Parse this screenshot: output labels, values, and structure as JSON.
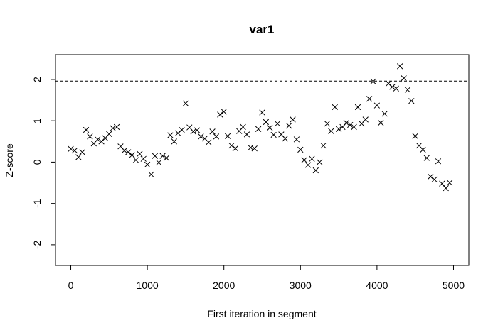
{
  "chart_data": {
    "type": "scatter",
    "title": "var1",
    "xlabel": "First iteration in segment",
    "ylabel": "Z-score",
    "xlim": [
      -200,
      5200
    ],
    "ylim": [
      -2.5,
      2.6
    ],
    "x_ticks": [
      0,
      1000,
      2000,
      3000,
      4000,
      5000
    ],
    "x_tick_labels": [
      "0",
      "1000",
      "2000",
      "3000",
      "4000",
      "5000"
    ],
    "y_ticks": [
      -2,
      -1,
      0,
      1,
      2
    ],
    "y_tick_labels": [
      "-2",
      "-1",
      "0",
      "1",
      "2"
    ],
    "reference_lines": [
      1.96,
      -1.96
    ],
    "marker": "x",
    "grid": false,
    "points": [
      [
        0,
        0.32
      ],
      [
        50,
        0.28
      ],
      [
        100,
        0.12
      ],
      [
        150,
        0.24
      ],
      [
        200,
        0.78
      ],
      [
        250,
        0.62
      ],
      [
        300,
        0.45
      ],
      [
        350,
        0.55
      ],
      [
        400,
        0.5
      ],
      [
        450,
        0.58
      ],
      [
        500,
        0.68
      ],
      [
        550,
        0.82
      ],
      [
        600,
        0.85
      ],
      [
        650,
        0.38
      ],
      [
        700,
        0.28
      ],
      [
        750,
        0.24
      ],
      [
        800,
        0.17
      ],
      [
        850,
        0.05
      ],
      [
        900,
        0.2
      ],
      [
        950,
        0.08
      ],
      [
        1000,
        -0.06
      ],
      [
        1050,
        -0.3
      ],
      [
        1100,
        0.15
      ],
      [
        1150,
        -0.01
      ],
      [
        1200,
        0.15
      ],
      [
        1250,
        0.1
      ],
      [
        1300,
        0.65
      ],
      [
        1350,
        0.5
      ],
      [
        1400,
        0.7
      ],
      [
        1450,
        0.78
      ],
      [
        1500,
        1.42
      ],
      [
        1550,
        0.84
      ],
      [
        1600,
        0.74
      ],
      [
        1650,
        0.77
      ],
      [
        1700,
        0.62
      ],
      [
        1750,
        0.57
      ],
      [
        1800,
        0.48
      ],
      [
        1850,
        0.74
      ],
      [
        1900,
        0.62
      ],
      [
        1950,
        1.15
      ],
      [
        2000,
        1.22
      ],
      [
        2050,
        0.63
      ],
      [
        2100,
        0.4
      ],
      [
        2150,
        0.33
      ],
      [
        2200,
        0.75
      ],
      [
        2250,
        0.85
      ],
      [
        2300,
        0.67
      ],
      [
        2350,
        0.35
      ],
      [
        2400,
        0.33
      ],
      [
        2450,
        0.8
      ],
      [
        2500,
        1.2
      ],
      [
        2550,
        0.97
      ],
      [
        2600,
        0.83
      ],
      [
        2650,
        0.66
      ],
      [
        2700,
        0.93
      ],
      [
        2750,
        0.67
      ],
      [
        2800,
        0.57
      ],
      [
        2850,
        0.88
      ],
      [
        2900,
        1.03
      ],
      [
        2950,
        0.55
      ],
      [
        3000,
        0.3
      ],
      [
        3050,
        0.05
      ],
      [
        3100,
        -0.07
      ],
      [
        3150,
        0.08
      ],
      [
        3200,
        -0.2
      ],
      [
        3250,
        0.0
      ],
      [
        3300,
        0.4
      ],
      [
        3350,
        0.93
      ],
      [
        3400,
        0.75
      ],
      [
        3450,
        1.33
      ],
      [
        3500,
        0.8
      ],
      [
        3550,
        0.85
      ],
      [
        3600,
        0.95
      ],
      [
        3650,
        0.9
      ],
      [
        3700,
        0.85
      ],
      [
        3750,
        1.33
      ],
      [
        3800,
        0.93
      ],
      [
        3850,
        1.03
      ],
      [
        3900,
        1.53
      ],
      [
        3950,
        1.95
      ],
      [
        4000,
        1.37
      ],
      [
        4050,
        0.95
      ],
      [
        4100,
        1.17
      ],
      [
        4150,
        1.9
      ],
      [
        4200,
        1.82
      ],
      [
        4250,
        1.78
      ],
      [
        4300,
        2.32
      ],
      [
        4350,
        2.03
      ],
      [
        4400,
        1.75
      ],
      [
        4450,
        1.48
      ],
      [
        4500,
        0.63
      ],
      [
        4550,
        0.4
      ],
      [
        4600,
        0.3
      ],
      [
        4650,
        0.1
      ],
      [
        4700,
        -0.35
      ],
      [
        4750,
        -0.42
      ],
      [
        4800,
        0.02
      ],
      [
        4850,
        -0.52
      ],
      [
        4900,
        -0.63
      ],
      [
        4950,
        -0.5
      ]
    ]
  }
}
